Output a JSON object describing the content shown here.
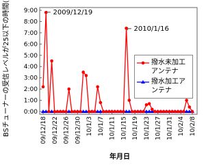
{
  "chart_data": {
    "type": "line",
    "y_label": "BSチューナーの受信レベルが25以下の時間(h)",
    "x_label": "年月日",
    "annotations": [
      "← 2009/12/19",
      "← 2010/1/16"
    ],
    "categories": [
      "09/12/18",
      null,
      null,
      null,
      "09/12/22",
      null,
      null,
      null,
      "09/12/26",
      null,
      null,
      null,
      "09/12/30",
      null,
      null,
      null,
      "10/1/3",
      null,
      null,
      null,
      "10/1/7",
      null,
      null,
      null,
      "10/1/11",
      null,
      null,
      null,
      "10/1/15",
      null,
      null,
      null,
      "10/1/19",
      null,
      null,
      null,
      "10/1/23",
      null,
      null,
      null,
      "10/1/27",
      null,
      null,
      null,
      "10/1/31",
      null,
      null,
      null,
      "10/2/4",
      null,
      null,
      null,
      "10/2/8"
    ],
    "series": [
      {
        "name": "撥水未加工アンテナ",
        "color": "#ff0000",
        "marker": "circle",
        "values": [
          2.2,
          8.8,
          0,
          4.5,
          0,
          0,
          0,
          0,
          0,
          2.0,
          0,
          0,
          0,
          0,
          3.5,
          3.2,
          0,
          0,
          0,
          2.2,
          0.8,
          0,
          0,
          0,
          0,
          0,
          0,
          0,
          0,
          7.4,
          1.0,
          0,
          0,
          0,
          0,
          0,
          0.6,
          0.7,
          0.2,
          0,
          0,
          0,
          0,
          0,
          0,
          0,
          0,
          0,
          0,
          0,
          1.0,
          0.4,
          0
        ]
      },
      {
        "name": "撥水加工アンテナ",
        "color": "#0000ff",
        "marker": "triangle",
        "values": [
          0,
          0,
          0,
          0,
          0,
          0,
          0,
          0,
          0,
          0,
          0,
          0,
          0,
          0,
          0,
          0,
          0,
          0,
          0,
          0,
          0,
          0,
          0,
          0,
          0,
          0,
          0,
          0,
          0,
          0,
          0,
          0,
          0,
          0,
          0,
          0,
          0,
          0,
          0,
          0,
          0,
          0,
          0,
          0,
          0,
          0,
          0,
          0,
          0,
          0,
          0,
          0,
          0
        ]
      }
    ],
    "ylim": [
      0,
      9
    ],
    "yticks": [
      {
        "value": 0,
        "label": "0:00"
      },
      {
        "value": 1,
        "label": "1:00"
      },
      {
        "value": 2,
        "label": "2:00"
      },
      {
        "value": 3,
        "label": "3:00"
      },
      {
        "value": 4,
        "label": "4:00"
      },
      {
        "value": 5,
        "label": "5:00"
      },
      {
        "value": 6,
        "label": "6:00"
      },
      {
        "value": 7,
        "label": "7:00"
      },
      {
        "value": 8,
        "label": "8:00"
      },
      {
        "value": 9,
        "label": "9:00"
      }
    ],
    "grid": false
  }
}
